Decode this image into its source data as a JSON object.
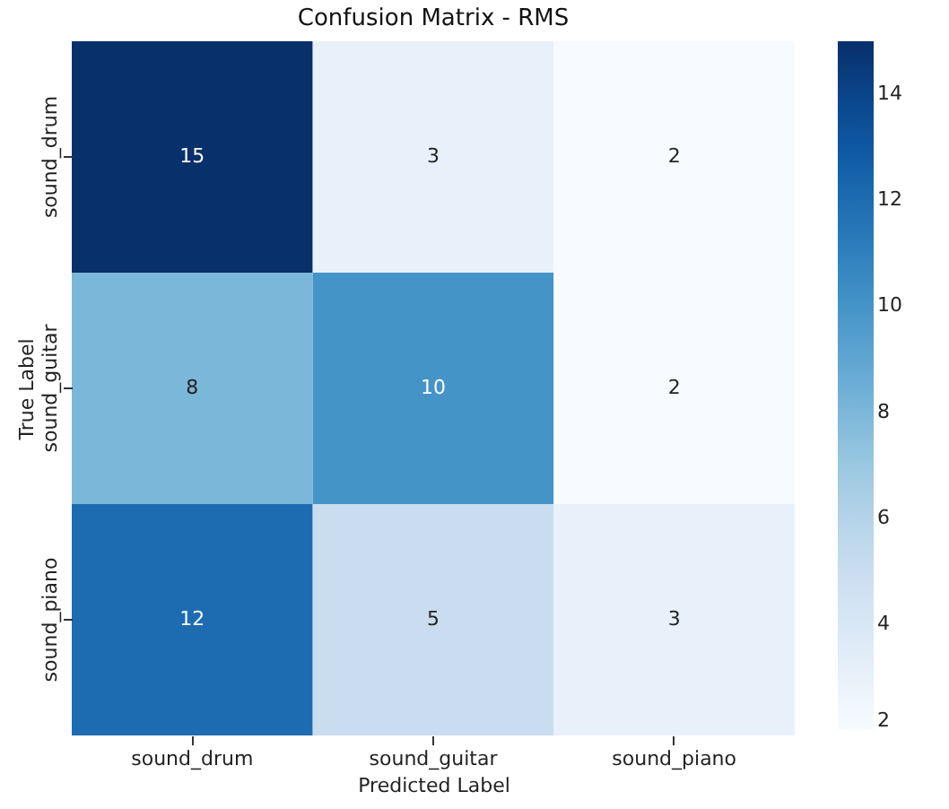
{
  "chart_data": {
    "type": "heatmap",
    "title": "Confusion Matrix - RMS",
    "xlabel": "Predicted Label",
    "ylabel": "True Label",
    "categories": [
      "sound_drum",
      "sound_guitar",
      "sound_piano"
    ],
    "y_categories": [
      "sound_drum",
      "sound_guitar",
      "sound_piano"
    ],
    "cells": [
      [
        15,
        3,
        2
      ],
      [
        8,
        10,
        2
      ],
      [
        12,
        5,
        3
      ]
    ],
    "data_labels": true,
    "clim": [
      2,
      15
    ],
    "cticks": [
      2,
      4,
      6,
      8,
      10,
      12,
      14
    ]
  }
}
